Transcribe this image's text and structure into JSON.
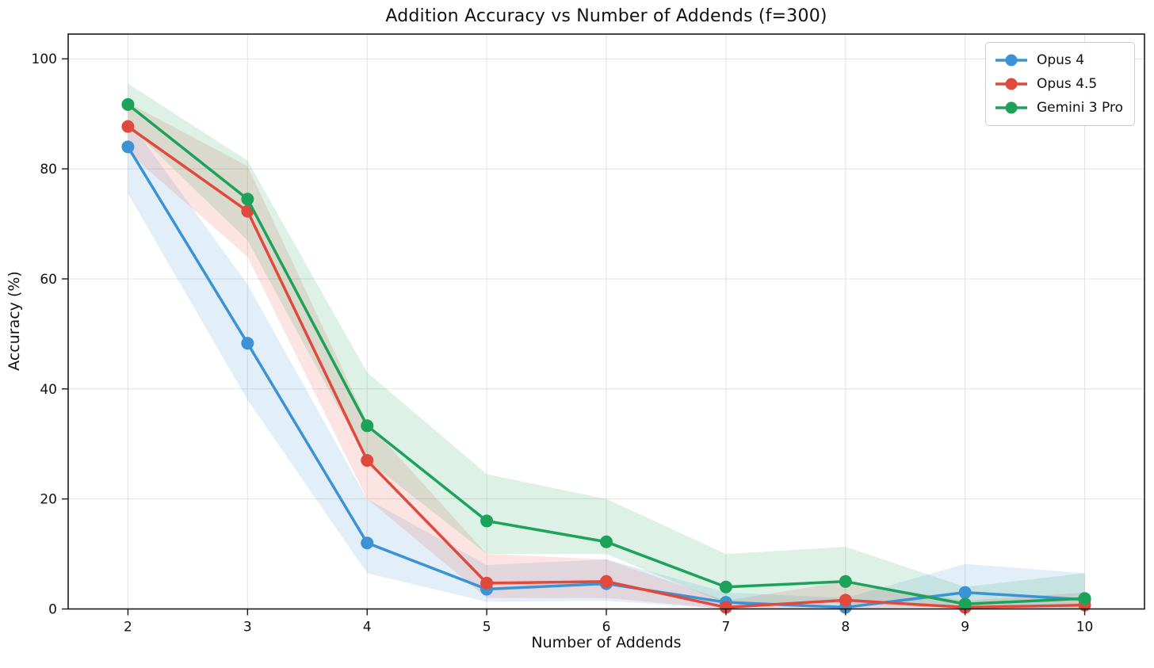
{
  "chart_data": {
    "type": "line",
    "title": "Addition Accuracy vs Number of Addends (f=300)",
    "xlabel": "Number of Addends",
    "ylabel": "Accuracy (%)",
    "x": [
      2,
      3,
      4,
      5,
      6,
      7,
      8,
      9,
      10
    ],
    "xlim": [
      1.5,
      10.5
    ],
    "ylim": [
      0,
      104.5
    ],
    "yticks": [
      0,
      20,
      40,
      60,
      80,
      100
    ],
    "grid": true,
    "legend_position": "upper right",
    "band_opacity": 0.15,
    "series": [
      {
        "name": "Opus 4",
        "color": "#3b92d4",
        "values": [
          84.0,
          48.3,
          12.0,
          3.6,
          4.6,
          1.2,
          0.3,
          3.0,
          1.7
        ],
        "band_low": [
          75.5,
          38.0,
          6.5,
          1.3,
          1.5,
          0.0,
          0.0,
          0.5,
          0.0
        ],
        "band_high": [
          89.0,
          59.0,
          20.0,
          8.0,
          9.0,
          3.0,
          2.0,
          8.2,
          6.5
        ]
      },
      {
        "name": "Opus 4.5",
        "color": "#e2493d",
        "values": [
          87.7,
          72.3,
          27.0,
          4.7,
          5.0,
          0.3,
          1.6,
          0.3,
          0.7
        ],
        "band_low": [
          83.0,
          64.0,
          20.0,
          2.0,
          2.0,
          0.0,
          0.0,
          0.0,
          0.0
        ],
        "band_high": [
          92.0,
          80.5,
          34.0,
          10.0,
          9.0,
          1.5,
          5.0,
          1.5,
          3.0
        ]
      },
      {
        "name": "Gemini 3 Pro",
        "color": "#1da25a",
        "values": [
          91.7,
          74.5,
          33.3,
          16.0,
          12.2,
          4.0,
          5.0,
          0.9,
          1.9
        ],
        "band_low": [
          88.0,
          67.0,
          27.0,
          10.0,
          10.0,
          1.0,
          1.0,
          0.0,
          0.0
        ],
        "band_high": [
          95.5,
          81.5,
          43.0,
          24.5,
          20.0,
          10.0,
          11.3,
          4.0,
          6.5
        ]
      }
    ]
  }
}
